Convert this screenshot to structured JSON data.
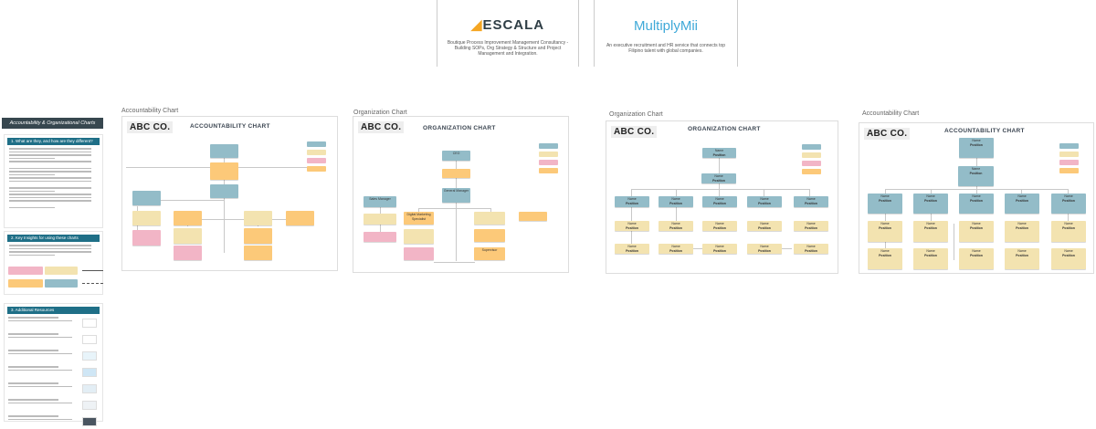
{
  "logos": {
    "escala": {
      "name": "ESCALA",
      "caption": "Boutique Process Improvement Management Consultancy - Building SOPs, Org Strategy & Structure and Project Management and Integration.",
      "brand_color": "#2f3e46",
      "accent_color": "#f5a623"
    },
    "multiply": {
      "name": "MultiplyMii",
      "caption": "An executive recruitment and HR service that connects top Filipino talent with global companies.",
      "brand_color": "#3fa9d8"
    }
  },
  "sidebar": {
    "title": "Accountability & Organizational Charts",
    "sections": [
      {
        "heading": "1. What are they, and how are they different?"
      },
      {
        "heading": "2. Key Insights for using these charts"
      },
      {
        "heading": "3. Additional Resources"
      }
    ]
  },
  "charts": [
    {
      "label": "Accountability Chart",
      "company": "ABC CO.",
      "title": "ACCOUNTABILITY CHART"
    },
    {
      "label": "Organization Chart",
      "company": "ABC CO.",
      "title": "ORGANIZATION CHART",
      "boxes": [
        "CEO",
        "",
        "General Manager",
        "Sales Manager",
        "",
        "",
        "Digital Marketing Specialist",
        "",
        "",
        "",
        "",
        "Supervisor",
        ""
      ]
    },
    {
      "label": "Organization Chart",
      "company": "ABC CO.",
      "title": "ORGANIZATION CHART",
      "name_text": "Name",
      "position_text": "Position"
    },
    {
      "label": "Accountability Chart",
      "company": "ABC CO.",
      "title": "ACCOUNTABILITY CHART",
      "name_text": "Name",
      "position_text": "Position"
    }
  ],
  "colors": {
    "blue": "#93bcc8",
    "yellow": "#f3e3b0",
    "pink": "#f2b5c6",
    "orange": "#fcc979",
    "header": "#1f6f87",
    "sidebar_title": "#37474f"
  }
}
